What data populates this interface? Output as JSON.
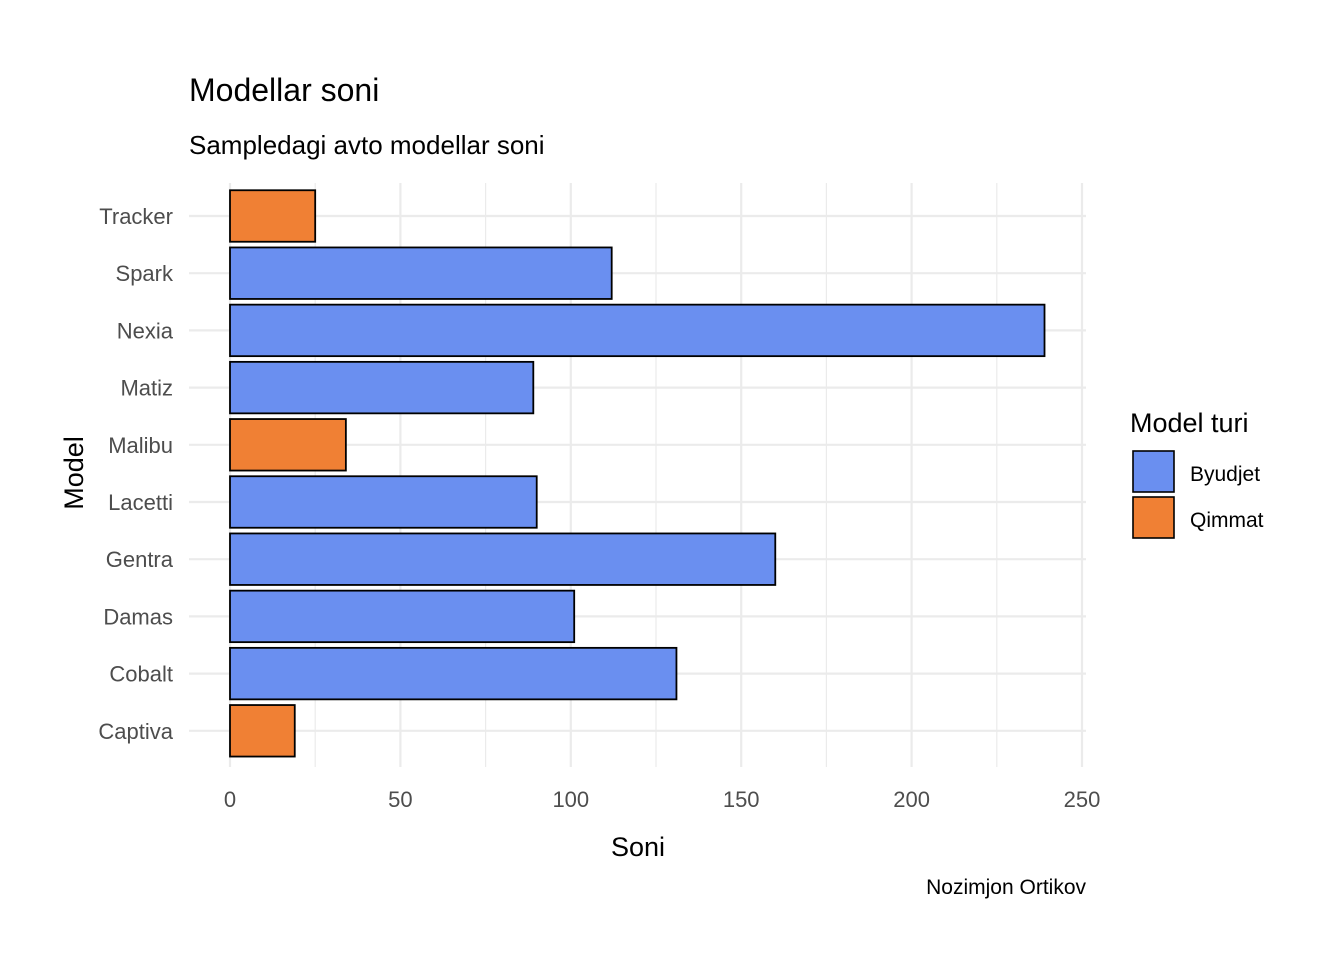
{
  "chart_data": {
    "type": "bar",
    "orientation": "horizontal",
    "title": "Modellar soni",
    "subtitle": "Sampledagi avto modellar soni",
    "xlabel": "Soni",
    "ylabel": "Model",
    "caption": "Nozimjon Ortikov",
    "xlim": [
      0,
      250
    ],
    "xticks": [
      "0",
      "50",
      "100",
      "150",
      "200",
      "250"
    ],
    "categories": [
      "Captiva",
      "Cobalt",
      "Damas",
      "Gentra",
      "Lacetti",
      "Malibu",
      "Matiz",
      "Nexia",
      "Spark",
      "Tracker"
    ],
    "values": [
      19,
      131,
      101,
      160,
      90,
      34,
      89,
      239,
      112,
      25
    ],
    "groups": [
      "Qimmat",
      "Byudjet",
      "Byudjet",
      "Byudjet",
      "Byudjet",
      "Qimmat",
      "Byudjet",
      "Byudjet",
      "Byudjet",
      "Qimmat"
    ],
    "grid": true,
    "legend": {
      "title": "Model turi",
      "position": "right",
      "items": [
        {
          "label": "Byudjet",
          "color": "#6A8FF0"
        },
        {
          "label": "Qimmat",
          "color": "#F08034"
        }
      ]
    }
  }
}
